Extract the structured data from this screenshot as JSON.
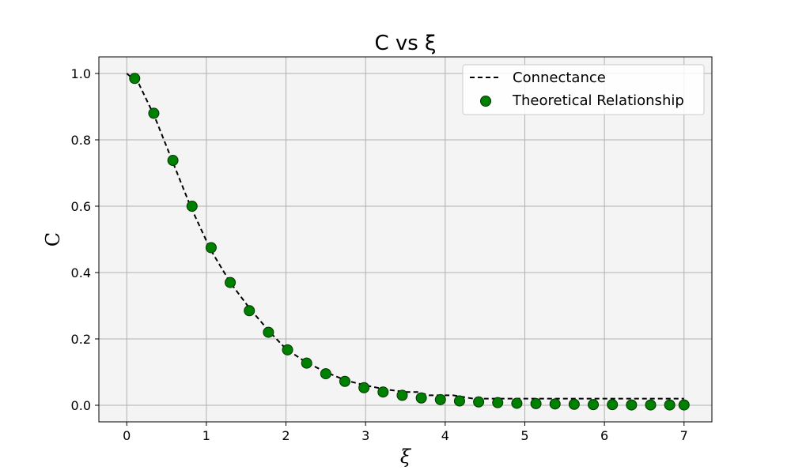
{
  "chart_data": {
    "type": "scatter",
    "title": "C vs ξ",
    "xlabel": "ξ",
    "ylabel": "C",
    "xlim": [
      -0.35,
      7.35
    ],
    "ylim": [
      -0.05,
      1.05
    ],
    "xticks": [
      0,
      1,
      2,
      3,
      4,
      5,
      6,
      7
    ],
    "yticks": [
      0.0,
      0.2,
      0.4,
      0.6,
      0.8,
      1.0
    ],
    "xtick_labels": [
      "0",
      "1",
      "2",
      "3",
      "4",
      "5",
      "6",
      "7"
    ],
    "ytick_labels": [
      "0.0",
      "0.2",
      "0.4",
      "0.6",
      "0.8",
      "1.0"
    ],
    "grid": true,
    "legend_position": "top-right",
    "series": [
      {
        "name": "Connectance",
        "kind": "line",
        "style": "dashed",
        "color": "#000000",
        "x": [
          0.0,
          0.15,
          0.35,
          0.6,
          0.8,
          1.05,
          1.3,
          1.55,
          1.8,
          2.0,
          2.25,
          2.5,
          2.75,
          3.0,
          3.25,
          3.5,
          3.65,
          3.8,
          4.1,
          4.35,
          4.6,
          5.0,
          5.5,
          6.0,
          6.5,
          7.0
        ],
        "y": [
          1.0,
          0.97,
          0.87,
          0.72,
          0.6,
          0.47,
          0.37,
          0.29,
          0.22,
          0.17,
          0.13,
          0.1,
          0.075,
          0.06,
          0.048,
          0.04,
          0.04,
          0.03,
          0.03,
          0.02,
          0.02,
          0.02,
          0.02,
          0.02,
          0.02,
          0.02
        ]
      },
      {
        "name": "Theoretical Relationship",
        "kind": "scatter",
        "color": "#008000",
        "edge_color": "#003300",
        "x": [
          0.1,
          0.34,
          0.58,
          0.82,
          1.06,
          1.3,
          1.54,
          1.78,
          2.02,
          2.26,
          2.5,
          2.74,
          2.98,
          3.22,
          3.46,
          3.7,
          3.94,
          4.18,
          4.42,
          4.66,
          4.9,
          5.14,
          5.38,
          5.62,
          5.86,
          6.1,
          6.34,
          6.58,
          6.82,
          7.0
        ],
        "y": [
          0.985,
          0.88,
          0.738,
          0.6,
          0.475,
          0.37,
          0.285,
          0.22,
          0.167,
          0.127,
          0.095,
          0.072,
          0.053,
          0.04,
          0.03,
          0.022,
          0.017,
          0.013,
          0.01,
          0.008,
          0.006,
          0.005,
          0.004,
          0.003,
          0.002,
          0.002,
          0.001,
          0.001,
          0.001,
          0.001
        ]
      }
    ]
  }
}
